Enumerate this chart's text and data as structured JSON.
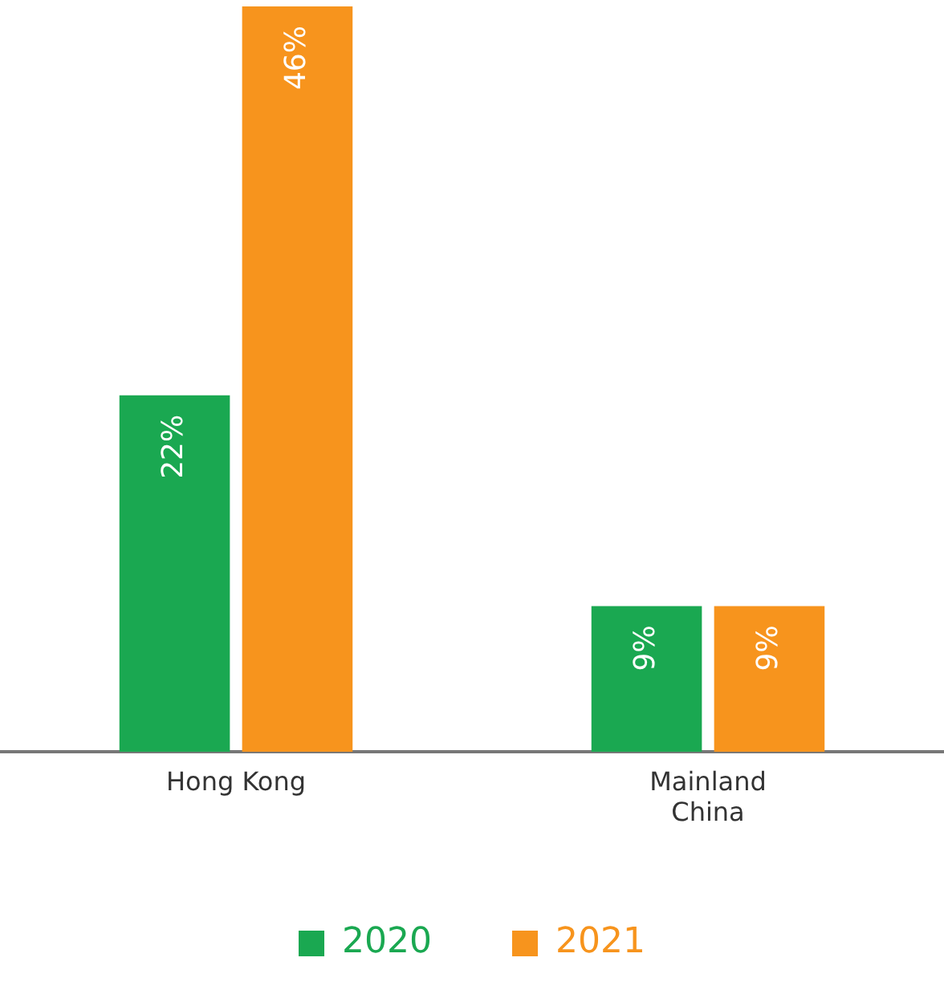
{
  "chart_data": {
    "type": "bar",
    "categories": [
      "Hong Kong",
      "Mainland\nChina"
    ],
    "series": [
      {
        "name": "2020",
        "color": "#1aa851",
        "values": [
          22,
          9
        ],
        "value_labels": [
          "22%",
          "9%"
        ]
      },
      {
        "name": "2021",
        "color": "#f7941d",
        "values": [
          46,
          9
        ],
        "value_labels": [
          "46%",
          "9%"
        ]
      }
    ],
    "legend": "bottom"
  }
}
